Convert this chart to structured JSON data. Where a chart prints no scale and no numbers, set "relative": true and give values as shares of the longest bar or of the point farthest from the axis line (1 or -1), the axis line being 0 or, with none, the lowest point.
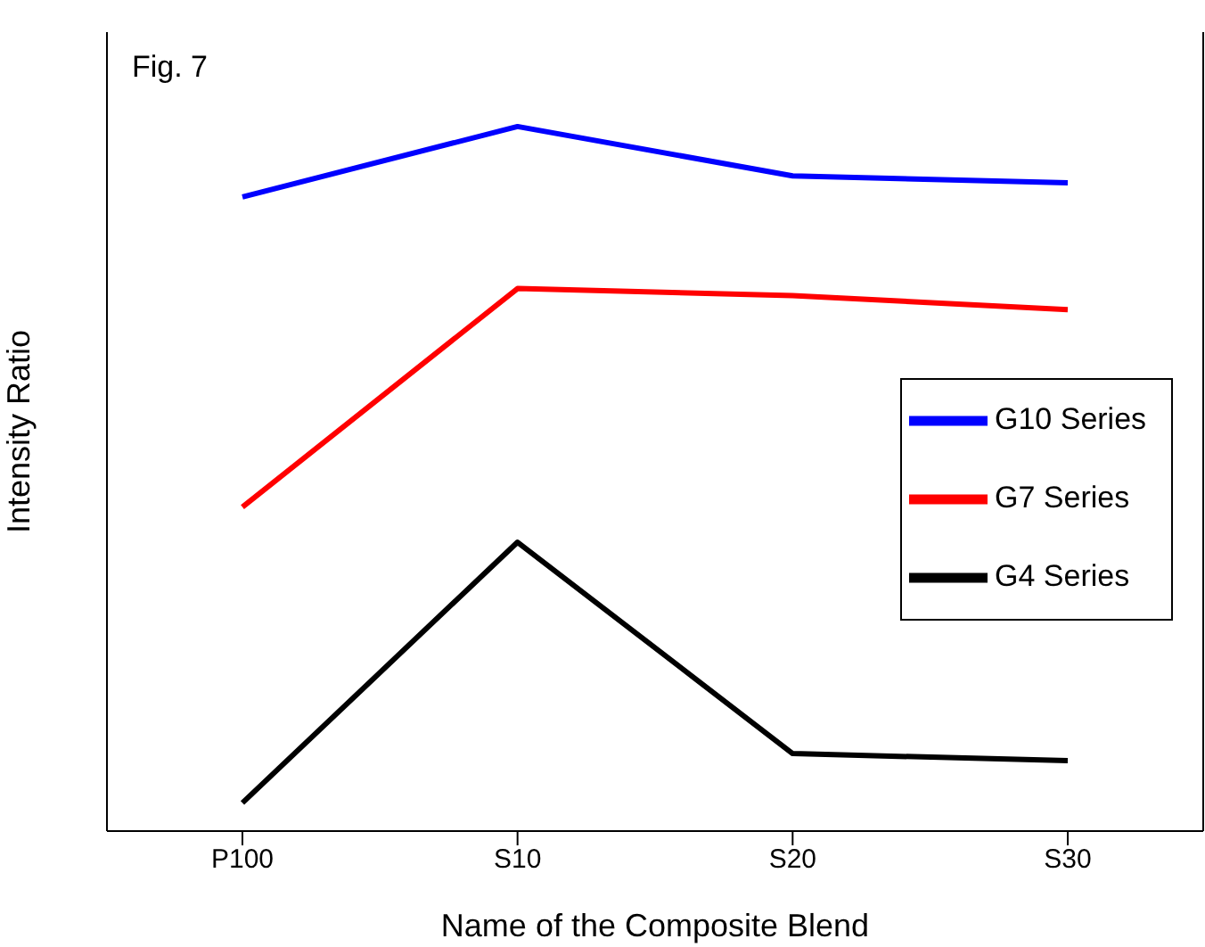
{
  "chart_data": {
    "type": "line",
    "xlabel": "Name of the Composite Blend",
    "ylabel": "Intensity Ratio",
    "annotations": [
      "Fig. 7"
    ],
    "relative": true,
    "categories": [
      "P100",
      "S10",
      "S20",
      "S30"
    ],
    "legend": "right",
    "marker": "none",
    "line_style": "solid",
    "grid": false,
    "series": [
      {
        "name": "G10 Series",
        "color": "#0000ff",
        "values": [
          0.9,
          1,
          0.93,
          0.92
        ]
      },
      {
        "name": "G7 Series",
        "color": "#ff0000",
        "values": [
          0.46,
          0.77,
          0.76,
          0.74
        ]
      },
      {
        "name": "G4 Series",
        "color": "#000000",
        "values": [
          0.04,
          0.41,
          0.11,
          0.1
        ]
      }
    ]
  }
}
